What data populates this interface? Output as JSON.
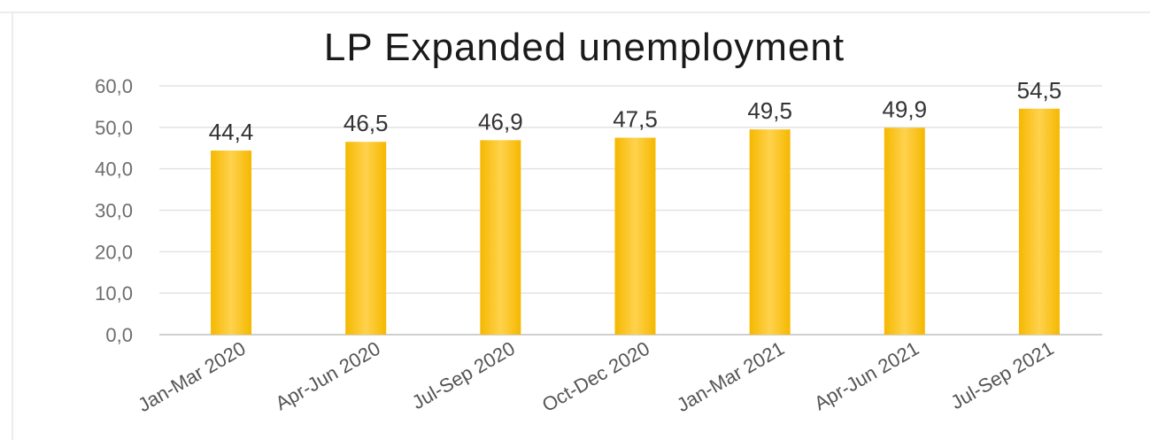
{
  "chart_data": {
    "type": "bar",
    "title": "LP Expanded unemployment",
    "categories": [
      "Jan-Mar 2020",
      "Apr-Jun 2020",
      "Jul-Sep 2020",
      "Oct-Dec 2020",
      "Jan-Mar 2021",
      "Apr-Jun 2021",
      "Jul-Sep 2021"
    ],
    "values": [
      44.4,
      46.5,
      46.9,
      47.5,
      49.5,
      49.9,
      54.5
    ],
    "data_labels": [
      "44,4",
      "46,5",
      "46,9",
      "47,5",
      "49,5",
      "49,9",
      "54,5"
    ],
    "yticks": [
      "0,0",
      "10,0",
      "20,0",
      "30,0",
      "40,0",
      "50,0",
      "60,0"
    ],
    "ylim": [
      0,
      60
    ],
    "grid": true,
    "legend": "none",
    "bar_color": "#f5b800",
    "bar_highlight_color": "#ffd24d"
  }
}
